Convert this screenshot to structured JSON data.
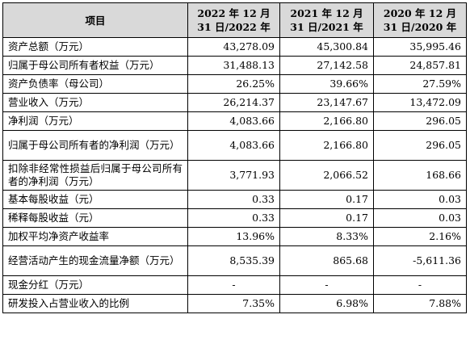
{
  "table": {
    "header": {
      "item_label": "项目",
      "years": [
        {
          "line1": "2022 年 12 月",
          "line2": "31 日/2022 年"
        },
        {
          "line1": "2021 年 12 月",
          "line2": "31 日/2021 年"
        },
        {
          "line1": "2020 年 12 月",
          "line2": "31 日/2020 年"
        }
      ]
    },
    "rows": [
      {
        "label": "资产总额（万元）",
        "values": [
          "43,278.09",
          "45,300.84",
          "35,995.46"
        ]
      },
      {
        "label": "归属于母公司所有者权益（万元）",
        "values": [
          "31,488.13",
          "27,142.58",
          "24,857.81"
        ]
      },
      {
        "label": "资产负债率（母公司）",
        "values": [
          "26.25%",
          "39.66%",
          "27.59%"
        ]
      },
      {
        "label": "营业收入（万元）",
        "values": [
          "26,214.37",
          "23,147.67",
          "13,472.09"
        ]
      },
      {
        "label": "净利润（万元）",
        "values": [
          "4,083.66",
          "2,166.80",
          "296.05"
        ]
      },
      {
        "label": "归属于母公司所有者的净利润（万元）",
        "values": [
          "4,083.66",
          "2,166.80",
          "296.05"
        ]
      },
      {
        "label": "扣除非经常性损益后归属于母公司所有者的净利润（万元）",
        "values": [
          "3,771.93",
          "2,066.52",
          "168.66"
        ]
      },
      {
        "label": "基本每股收益（元）",
        "values": [
          "0.33",
          "0.17",
          "0.03"
        ]
      },
      {
        "label": "稀释每股收益（元）",
        "values": [
          "0.33",
          "0.17",
          "0.03"
        ]
      },
      {
        "label": "加权平均净资产收益率",
        "values": [
          "13.96%",
          "8.33%",
          "2.16%"
        ]
      },
      {
        "label": "经营活动产生的现金流量净额（万元）",
        "values": [
          "8,535.39",
          "865.68",
          "-5,611.36"
        ]
      },
      {
        "label": "现金分红（万元）",
        "values": [
          "-",
          "-",
          "-"
        ]
      },
      {
        "label": "研发投入占营业收入的比例",
        "values": [
          "7.35%",
          "6.98%",
          "7.88%"
        ]
      }
    ]
  },
  "colors": {
    "header_background": "#d9d9d9",
    "border": "#000000",
    "text": "#000000"
  }
}
